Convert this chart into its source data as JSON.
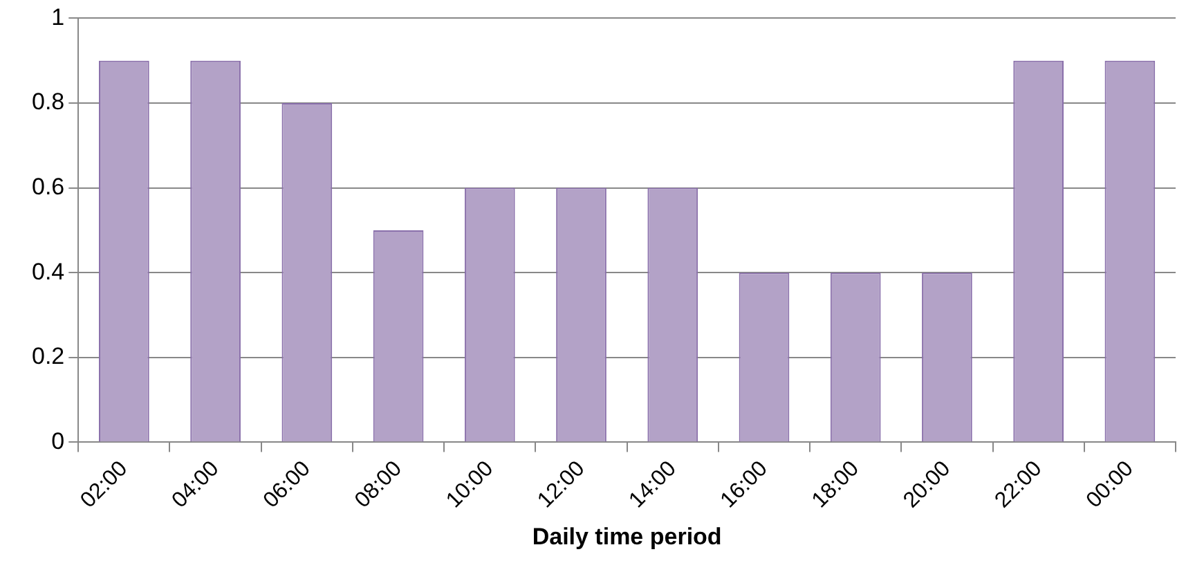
{
  "chart_data": {
    "type": "bar",
    "xlabel": "Daily time period",
    "categories": [
      "02:00",
      "04:00",
      "06:00",
      "08:00",
      "10:00",
      "12:00",
      "14:00",
      "16:00",
      "18:00",
      "20:00",
      "22:00",
      "00:00"
    ],
    "values": [
      0.9,
      0.9,
      0.8,
      0.5,
      0.6,
      0.6,
      0.6,
      0.4,
      0.4,
      0.4,
      0.9,
      0.9
    ],
    "color": "#b3a2c7",
    "ylim": [
      0,
      1
    ],
    "yticks": [
      0,
      0.2,
      0.4,
      0.6,
      0.8,
      1
    ],
    "grid": "y",
    "legend": false
  }
}
